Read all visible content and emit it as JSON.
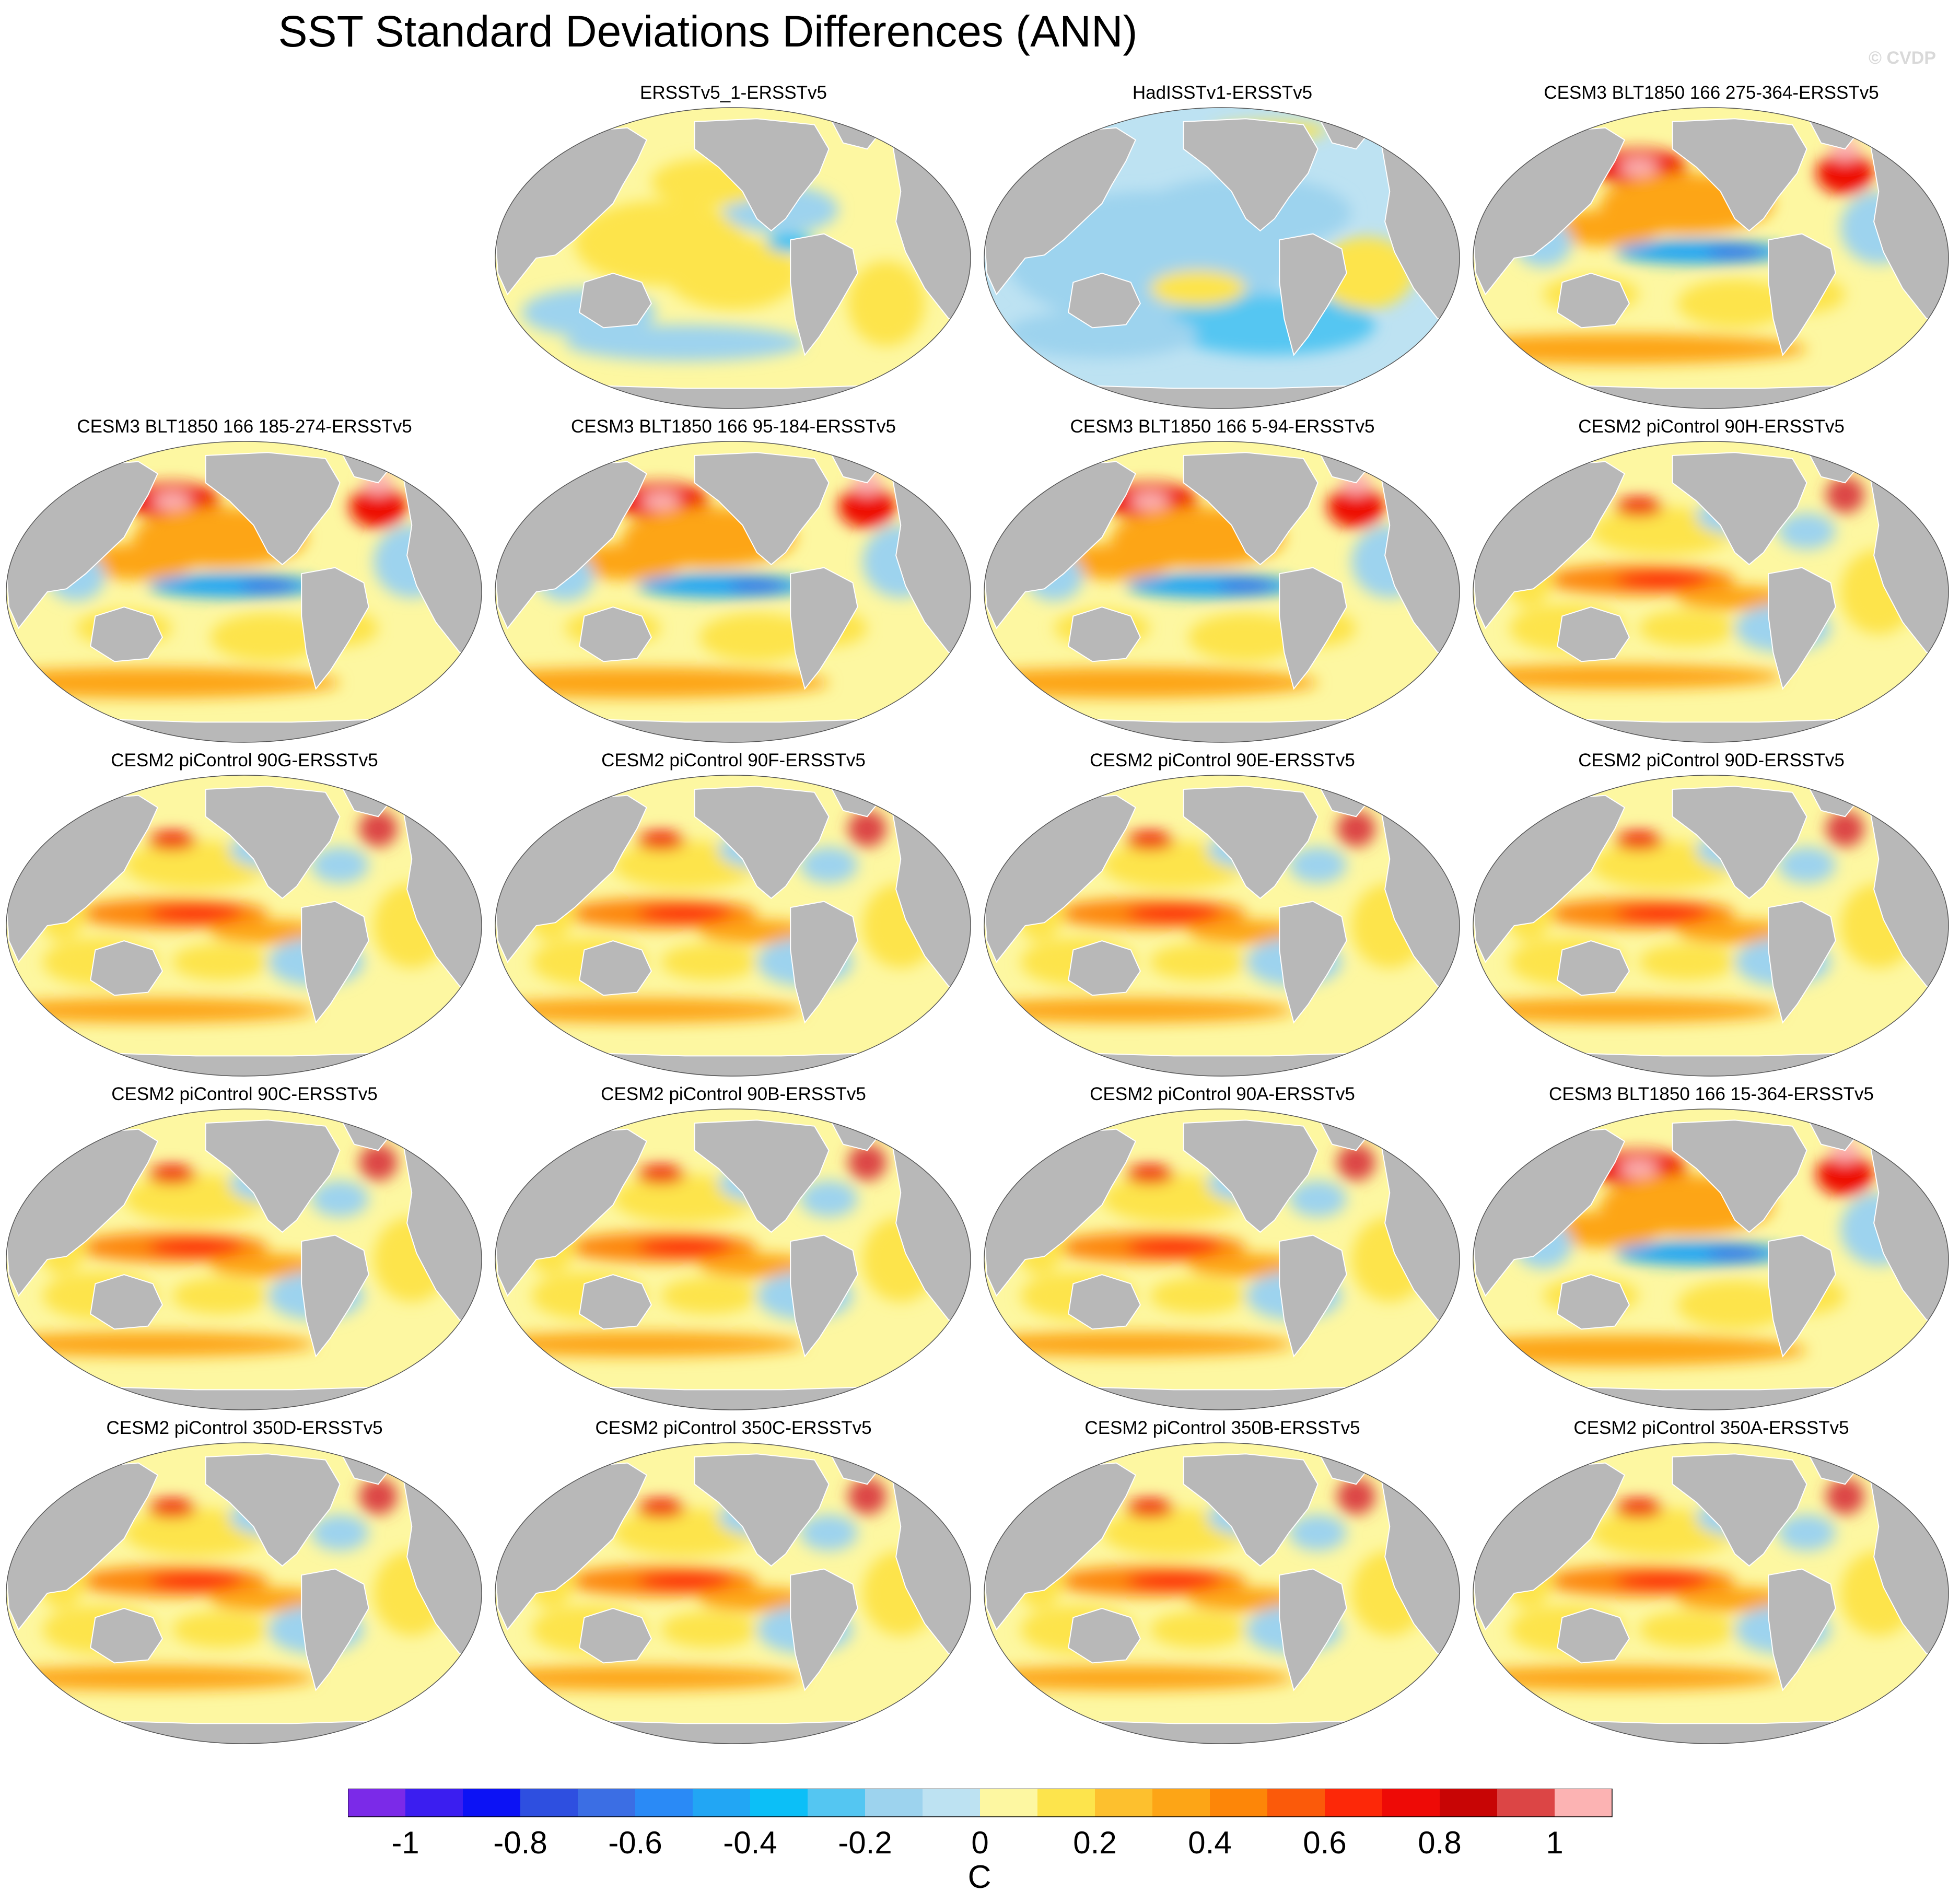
{
  "title": "SST Standard Deviations Differences (ANN)",
  "watermark": "© CVDP",
  "colorbar": {
    "label": "C",
    "ticks": [
      "-1",
      "-0.8",
      "-0.6",
      "-0.4",
      "-0.2",
      "0",
      "0.2",
      "0.4",
      "0.6",
      "0.8",
      "1"
    ],
    "colors": [
      "#7b2ae8",
      "#3b1ef0",
      "#0c12f5",
      "#2e4fe0",
      "#3b6ee4",
      "#2a8af6",
      "#22a6f4",
      "#0cbff7",
      "#54c6f2",
      "#9dd3ee",
      "#bde2f2",
      "#fdf7a1",
      "#fde44c",
      "#fdc02e",
      "#fda516",
      "#fd8608",
      "#fb5a0a",
      "#fd2808",
      "#ee0a06",
      "#c80505",
      "#dc4545",
      "#fcb3b3"
    ]
  },
  "chart_data": {
    "type": "heatmap",
    "projection": "global ocean map",
    "value_range": [
      -1.1,
      1.1
    ],
    "unit": "C",
    "panels": [
      {
        "title": "ERSSTv5_1-ERSSTv5",
        "pattern": "weak"
      },
      {
        "title": "HadISSTv1-ERSSTv5",
        "pattern": "cool"
      },
      {
        "title": "CESM3 BLT1850 166 275-364-ERSSTv5",
        "pattern": "cesm3"
      },
      {
        "title": "CESM3 BLT1850 166 185-274-ERSSTv5",
        "pattern": "cesm3"
      },
      {
        "title": "CESM3 BLT1850 166 95-184-ERSSTv5",
        "pattern": "cesm3"
      },
      {
        "title": "CESM3 BLT1850 166 5-94-ERSSTv5",
        "pattern": "cesm3"
      },
      {
        "title": "CESM2 piControl 90H-ERSSTv5",
        "pattern": "cesm2"
      },
      {
        "title": "CESM2 piControl 90G-ERSSTv5",
        "pattern": "cesm2"
      },
      {
        "title": "CESM2 piControl 90F-ERSSTv5",
        "pattern": "cesm2"
      },
      {
        "title": "CESM2 piControl 90E-ERSSTv5",
        "pattern": "cesm2"
      },
      {
        "title": "CESM2 piControl 90D-ERSSTv5",
        "pattern": "cesm2"
      },
      {
        "title": "CESM2 piControl 90C-ERSSTv5",
        "pattern": "cesm2"
      },
      {
        "title": "CESM2 piControl 90B-ERSSTv5",
        "pattern": "cesm2"
      },
      {
        "title": "CESM2 piControl 90A-ERSSTv5",
        "pattern": "cesm2"
      },
      {
        "title": "CESM3 BLT1850 166 15-364-ERSSTv5",
        "pattern": "cesm3"
      },
      {
        "title": "CESM2 piControl 350D-ERSSTv5",
        "pattern": "cesm2"
      },
      {
        "title": "CESM2 piControl 350C-ERSSTv5",
        "pattern": "cesm2"
      },
      {
        "title": "CESM2 piControl 350B-ERSSTv5",
        "pattern": "cesm2"
      },
      {
        "title": "CESM2 piControl 350A-ERSSTv5",
        "pattern": "cesm2"
      }
    ]
  }
}
